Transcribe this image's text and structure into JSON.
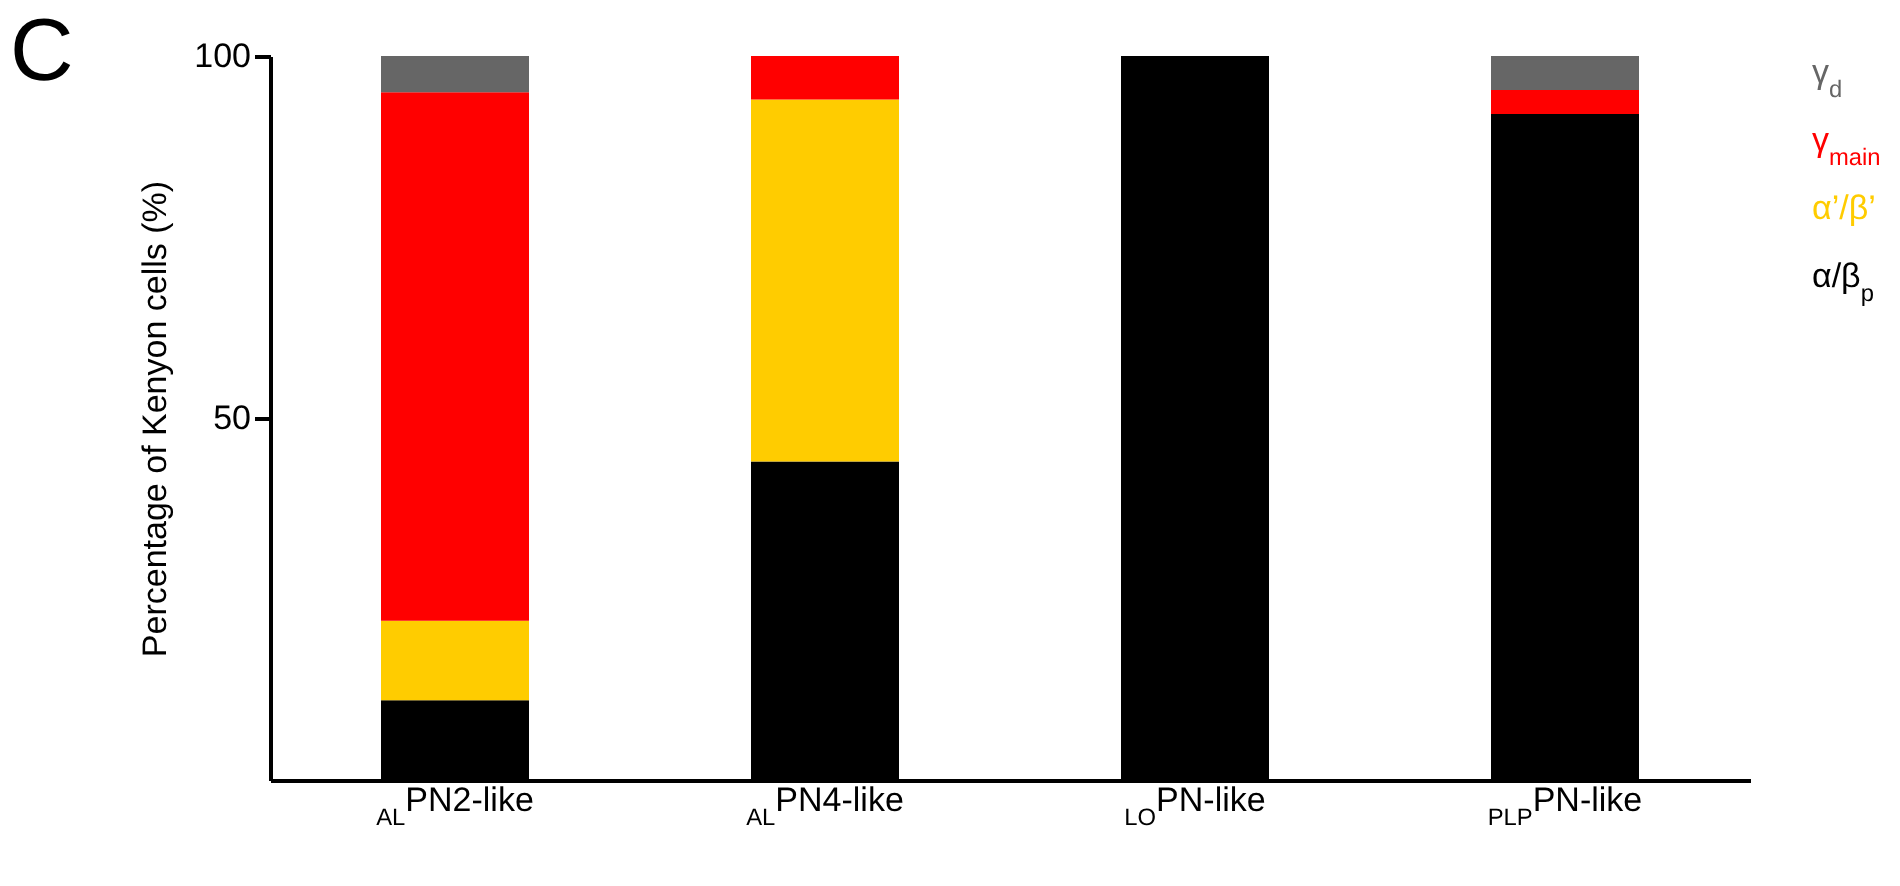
{
  "chart_data": {
    "type": "bar",
    "title": "C",
    "ylabel": "Percentage of Kenyon cells (%)",
    "categories": [
      "$_{AL}$PN2-like",
      "$_{AL}$PN4-like",
      "$_{LO}$PN-like",
      "$_{PLP}$PN-like"
    ],
    "stacked": true,
    "ylim": [
      0,
      100
    ],
    "yticks": [
      50,
      100
    ],
    "legend": "right",
    "grid": false,
    "series": [
      {
        "name": "α/β$_{p}$",
        "color": "#000000",
        "values": [
          11,
          44,
          100,
          92
        ]
      },
      {
        "name": "α’/β’",
        "color": "#ffcc00",
        "values": [
          11,
          50,
          0,
          0
        ]
      },
      {
        "name": "γ$_{main}$",
        "color": "#ff0000",
        "values": [
          73,
          6,
          0,
          3.3
        ]
      },
      {
        "name": "γ$_{d}$",
        "color": "#666666",
        "values": [
          5,
          0,
          0,
          4.7
        ]
      }
    ]
  }
}
